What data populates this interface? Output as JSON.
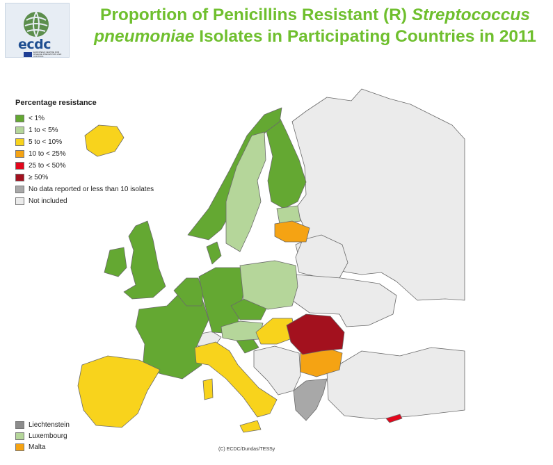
{
  "header": {
    "title_part1": "Proportion of Penicillins Resistant (R) ",
    "title_italic1": "Streptococcus",
    "title_italic2": "pneumoniae",
    "title_part2": " Isolates in Participating Countries in 2011"
  },
  "logo": {
    "wordmark": "ecdc",
    "tagline": "EUROPEAN CENTRE FOR DISEASE PREVENTION AND CONTROL"
  },
  "legend": {
    "title": "Percentage resistance",
    "items": [
      {
        "label": "< 1%",
        "color": "#64a832"
      },
      {
        "label": "1 to < 5%",
        "color": "#b5d69a"
      },
      {
        "label": "5 to < 10%",
        "color": "#f8d31c"
      },
      {
        "label": "10 to < 25%",
        "color": "#f5a313"
      },
      {
        "label": "25 to < 50%",
        "color": "#e3061c"
      },
      {
        "label": "≥ 50%",
        "color": "#a3111e"
      },
      {
        "label": "No data reported or less than 10 isolates",
        "color": "#a8a8a8"
      },
      {
        "label": "Not included",
        "color": "#ebebeb"
      }
    ]
  },
  "small_countries": [
    {
      "label": "Liechtenstein",
      "color": "#8c8c8c"
    },
    {
      "label": "Luxembourg",
      "color": "#b5d69a"
    },
    {
      "label": "Malta",
      "color": "#f5a313"
    }
  ],
  "credit": "(C) ECDC/Dundas/TESSy"
}
